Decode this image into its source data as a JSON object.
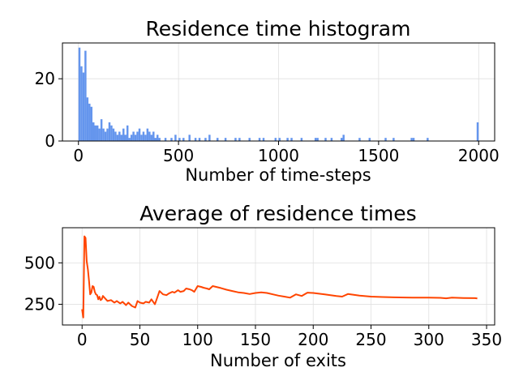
{
  "chart_data": [
    {
      "type": "bar",
      "title": "Residence time histogram",
      "xlabel": "Number of time-steps",
      "ylabel": "",
      "xlim": [
        -80,
        2080
      ],
      "ylim": [
        0,
        31.5
      ],
      "xticks": [
        0,
        500,
        1000,
        1500,
        2000
      ],
      "xtick_labels": [
        "0",
        "500",
        "1000",
        "1500",
        "2000"
      ],
      "yticks": [
        0,
        20
      ],
      "ytick_labels": [
        "0",
        "20"
      ],
      "grid": true,
      "color": "#6495ed",
      "bin_width": 10,
      "bins": [
        {
          "x": 0,
          "count": 30
        },
        {
          "x": 10,
          "count": 24
        },
        {
          "x": 20,
          "count": 22
        },
        {
          "x": 30,
          "count": 29
        },
        {
          "x": 40,
          "count": 14
        },
        {
          "x": 50,
          "count": 12
        },
        {
          "x": 60,
          "count": 11
        },
        {
          "x": 70,
          "count": 6
        },
        {
          "x": 80,
          "count": 5
        },
        {
          "x": 90,
          "count": 5
        },
        {
          "x": 100,
          "count": 4
        },
        {
          "x": 110,
          "count": 7
        },
        {
          "x": 120,
          "count": 4
        },
        {
          "x": 130,
          "count": 3
        },
        {
          "x": 140,
          "count": 4
        },
        {
          "x": 150,
          "count": 6
        },
        {
          "x": 160,
          "count": 5
        },
        {
          "x": 170,
          "count": 4
        },
        {
          "x": 180,
          "count": 3
        },
        {
          "x": 190,
          "count": 2
        },
        {
          "x": 200,
          "count": 3
        },
        {
          "x": 210,
          "count": 2
        },
        {
          "x": 220,
          "count": 4
        },
        {
          "x": 230,
          "count": 2
        },
        {
          "x": 240,
          "count": 5
        },
        {
          "x": 250,
          "count": 1
        },
        {
          "x": 260,
          "count": 2
        },
        {
          "x": 270,
          "count": 3
        },
        {
          "x": 280,
          "count": 2
        },
        {
          "x": 290,
          "count": 3
        },
        {
          "x": 300,
          "count": 4
        },
        {
          "x": 310,
          "count": 2
        },
        {
          "x": 320,
          "count": 3
        },
        {
          "x": 330,
          "count": 2
        },
        {
          "x": 340,
          "count": 4
        },
        {
          "x": 350,
          "count": 3
        },
        {
          "x": 360,
          "count": 2
        },
        {
          "x": 370,
          "count": 3
        },
        {
          "x": 380,
          "count": 1
        },
        {
          "x": 390,
          "count": 2
        },
        {
          "x": 400,
          "count": 1
        },
        {
          "x": 430,
          "count": 1
        },
        {
          "x": 460,
          "count": 1
        },
        {
          "x": 480,
          "count": 2
        },
        {
          "x": 500,
          "count": 1
        },
        {
          "x": 520,
          "count": 1
        },
        {
          "x": 550,
          "count": 2
        },
        {
          "x": 580,
          "count": 1
        },
        {
          "x": 600,
          "count": 1
        },
        {
          "x": 630,
          "count": 1
        },
        {
          "x": 650,
          "count": 2
        },
        {
          "x": 690,
          "count": 1
        },
        {
          "x": 730,
          "count": 1
        },
        {
          "x": 780,
          "count": 1
        },
        {
          "x": 800,
          "count": 1
        },
        {
          "x": 850,
          "count": 1
        },
        {
          "x": 900,
          "count": 1
        },
        {
          "x": 920,
          "count": 1
        },
        {
          "x": 980,
          "count": 1
        },
        {
          "x": 1000,
          "count": 1
        },
        {
          "x": 1040,
          "count": 1
        },
        {
          "x": 1060,
          "count": 1
        },
        {
          "x": 1110,
          "count": 1
        },
        {
          "x": 1180,
          "count": 1
        },
        {
          "x": 1190,
          "count": 1
        },
        {
          "x": 1230,
          "count": 1
        },
        {
          "x": 1260,
          "count": 1
        },
        {
          "x": 1310,
          "count": 1
        },
        {
          "x": 1320,
          "count": 2
        },
        {
          "x": 1400,
          "count": 1
        },
        {
          "x": 1450,
          "count": 1
        },
        {
          "x": 1530,
          "count": 1
        },
        {
          "x": 1570,
          "count": 1
        },
        {
          "x": 1660,
          "count": 1
        },
        {
          "x": 1670,
          "count": 1
        },
        {
          "x": 1740,
          "count": 1
        },
        {
          "x": 1990,
          "count": 6
        }
      ]
    },
    {
      "type": "line",
      "title": "Average of residence times",
      "xlabel": "Number of exits",
      "ylabel": "",
      "xlim": [
        -17,
        357
      ],
      "ylim": [
        125,
        712
      ],
      "xticks": [
        0,
        50,
        100,
        150,
        200,
        250,
        300,
        350
      ],
      "xtick_labels": [
        "0",
        "50",
        "100",
        "150",
        "200",
        "250",
        "300",
        "350"
      ],
      "yticks": [
        250,
        500
      ],
      "ytick_labels": [
        "250",
        "500"
      ],
      "grid": true,
      "color": "#ff4500",
      "x": [
        0,
        1,
        2,
        3,
        4,
        5,
        6,
        7,
        8,
        9,
        10,
        11,
        12,
        13,
        14,
        15,
        16,
        17,
        18,
        20,
        22,
        25,
        28,
        30,
        33,
        35,
        38,
        40,
        43,
        46,
        48,
        50,
        53,
        55,
        58,
        60,
        63,
        65,
        67,
        70,
        73,
        75,
        78,
        80,
        83,
        85,
        88,
        90,
        93,
        95,
        97,
        100,
        103,
        105,
        108,
        110,
        113,
        116,
        120,
        125,
        130,
        135,
        140,
        145,
        150,
        155,
        160,
        165,
        170,
        175,
        180,
        185,
        190,
        195,
        200,
        205,
        210,
        215,
        220,
        225,
        230,
        240,
        250,
        260,
        270,
        280,
        290,
        300,
        310,
        315,
        320,
        330,
        340,
        342
      ],
      "y": [
        220,
        170,
        660,
        650,
        510,
        460,
        390,
        310,
        320,
        360,
        355,
        325,
        310,
        305,
        280,
        295,
        275,
        280,
        300,
        285,
        270,
        275,
        260,
        270,
        255,
        265,
        245,
        260,
        240,
        230,
        270,
        260,
        255,
        265,
        260,
        280,
        250,
        290,
        330,
        310,
        305,
        315,
        325,
        320,
        335,
        325,
        330,
        345,
        340,
        335,
        325,
        360,
        355,
        350,
        345,
        340,
        360,
        355,
        348,
        338,
        330,
        322,
        318,
        312,
        318,
        322,
        318,
        310,
        302,
        296,
        290,
        310,
        300,
        320,
        318,
        314,
        310,
        305,
        300,
        296,
        312,
        302,
        296,
        294,
        292,
        291,
        290,
        290,
        289,
        286,
        290,
        288,
        287,
        285
      ]
    }
  ]
}
